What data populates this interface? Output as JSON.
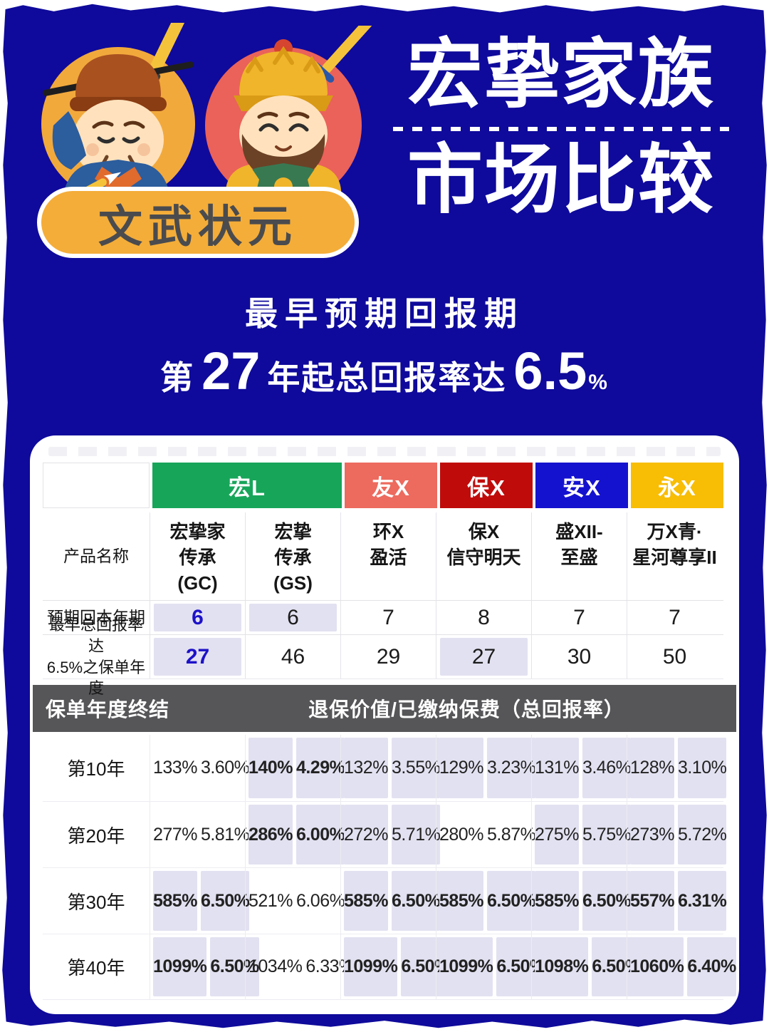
{
  "colors": {
    "background": "#0f0a9b",
    "accent_blue_text": "#1d12c8",
    "highlight_lavender": "#e2e1f1",
    "banner_gray": "#565659",
    "badge_yellow": "#f4ad39",
    "scholar_circle": "#f2a93c",
    "warrior_circle": "#ea625a"
  },
  "header": {
    "badge": "文武状元",
    "title_line1": "宏挚家族",
    "title_line2": "市场比较",
    "scholar_icon": "scholar-character",
    "warrior_icon": "warrior-character"
  },
  "subtitle": {
    "line1": "最早预期回报期",
    "prefix": "第",
    "year": "27",
    "mid": "年起总回报率达",
    "rate": "6.5",
    "percent": "%"
  },
  "table": {
    "brands": [
      {
        "label": "宏L",
        "color": "#17a55a",
        "span": 2
      },
      {
        "label": "友X",
        "color": "#ed6a5e",
        "span": 1
      },
      {
        "label": "保X",
        "color": "#c00b0b",
        "span": 1
      },
      {
        "label": "安X",
        "color": "#1512cf",
        "span": 1
      },
      {
        "label": "永X",
        "color": "#f8bd05",
        "span": 1
      }
    ],
    "row_labels": {
      "product": "产品名称",
      "payback": "预期回本年期",
      "earliest": "最早总回报率达\n6.5%之保单年度"
    },
    "columns": [
      {
        "name": "宏挚家\n传承\n(GC)",
        "payback": "6",
        "payback_hl": true,
        "payback_blue": true,
        "earliest": "27",
        "earliest_hl": true,
        "earliest_blue": true
      },
      {
        "name": "宏挚\n传承\n(GS)",
        "payback": "6",
        "payback_hl": true,
        "payback_blue": false,
        "earliest": "46",
        "earliest_hl": false,
        "earliest_blue": false
      },
      {
        "name": "环X\n盈活",
        "payback": "7",
        "payback_hl": false,
        "payback_blue": false,
        "earliest": "29",
        "earliest_hl": false,
        "earliest_blue": false
      },
      {
        "name": "保X\n信守明天",
        "payback": "8",
        "payback_hl": false,
        "payback_blue": false,
        "earliest": "27",
        "earliest_hl": true,
        "earliest_blue": false
      },
      {
        "name": "盛XII-\n至盛",
        "payback": "7",
        "payback_hl": false,
        "payback_blue": false,
        "earliest": "30",
        "earliest_hl": false,
        "earliest_blue": false
      },
      {
        "name": "万X青·\n星河尊享II",
        "payback": "7",
        "payback_hl": false,
        "payback_blue": false,
        "earliest": "50",
        "earliest_hl": false,
        "earliest_blue": false
      }
    ],
    "banner": {
      "left": "保单年度终结",
      "right": "退保价值/已缴纳保费（总回报率）"
    },
    "data_rows": [
      {
        "label": "第10年",
        "pairs": [
          {
            "v1": "133%",
            "v2": "3.60%",
            "hl": false
          },
          {
            "v1": "140%",
            "v2": "4.29%",
            "hl": true,
            "blue": true,
            "bold": true
          },
          {
            "v1": "132%",
            "v2": "3.55%",
            "hl": true
          },
          {
            "v1": "129%",
            "v2": "3.23%",
            "hl": true
          },
          {
            "v1": "131%",
            "v2": "3.46%",
            "hl": true
          },
          {
            "v1": "128%",
            "v2": "3.10%",
            "hl": true
          }
        ]
      },
      {
        "label": "第20年",
        "pairs": [
          {
            "v1": "277%",
            "v2": "5.81%",
            "hl": false
          },
          {
            "v1": "286%",
            "v2": "6.00%",
            "hl": true,
            "blue": true,
            "bold": true
          },
          {
            "v1": "272%",
            "v2": "5.71%",
            "hl": true
          },
          {
            "v1": "280%",
            "v2": "5.87%",
            "hl": false
          },
          {
            "v1": "275%",
            "v2": "5.75%",
            "hl": true
          },
          {
            "v1": "273%",
            "v2": "5.72%",
            "hl": true
          }
        ]
      },
      {
        "label": "第30年",
        "pairs": [
          {
            "v1": "585%",
            "v2": "6.50%",
            "hl": true,
            "bold": true
          },
          {
            "v1": "521%",
            "v2": "6.06%",
            "hl": false
          },
          {
            "v1": "585%",
            "v2": "6.50%",
            "hl": true,
            "bold": true
          },
          {
            "v1": "585%",
            "v2": "6.50%",
            "hl": true,
            "bold": true
          },
          {
            "v1": "585%",
            "v2": "6.50%",
            "hl": true,
            "bold": true
          },
          {
            "v1": "557%",
            "v2": "6.31%",
            "hl": true,
            "bold": true
          }
        ]
      },
      {
        "label": "第40年",
        "pairs": [
          {
            "v1": "1099%",
            "v2": "6.50%",
            "hl": true,
            "bold": true
          },
          {
            "v1": "1034%",
            "v2": "6.33%",
            "hl": false
          },
          {
            "v1": "1099%",
            "v2": "6.50%",
            "hl": true,
            "bold": true
          },
          {
            "v1": "1099%",
            "v2": "6.50%",
            "hl": true,
            "bold": true
          },
          {
            "v1": "1098%",
            "v2": "6.50%",
            "hl": true,
            "bold": true
          },
          {
            "v1": "1060%",
            "v2": "6.40%",
            "hl": true,
            "bold": true
          }
        ]
      }
    ]
  }
}
